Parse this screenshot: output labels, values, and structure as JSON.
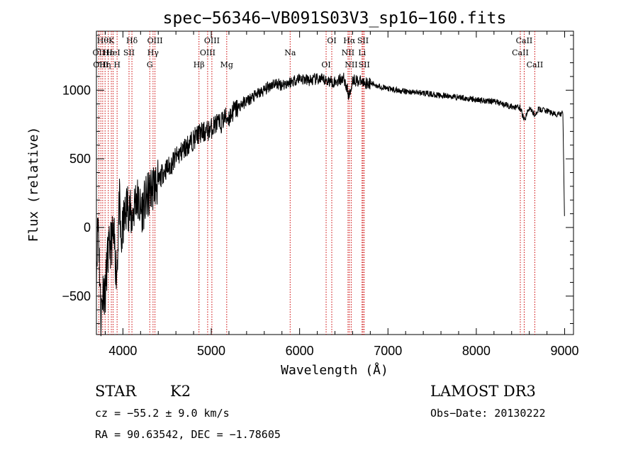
{
  "chart_data": {
    "type": "line",
    "title": "spec−56346−VB091S03V3_sp16−160.fits",
    "xlabel": "Wavelength (Å)",
    "ylabel": "Flux (relative)",
    "xlim": [
      3700,
      9100
    ],
    "ylim": [
      -780,
      1430
    ],
    "xticks": [
      4000,
      5000,
      6000,
      7000,
      8000,
      9000
    ],
    "xtick_labels": [
      "4000",
      "5000",
      "6000",
      "7000",
      "8000",
      "9000"
    ],
    "yticks": [
      -500,
      0,
      500,
      1000
    ],
    "ytick_labels": [
      "−500",
      "0",
      "500",
      "1000"
    ],
    "series": [
      {
        "name": "flux",
        "x": [
          3700,
          3720,
          3750,
          3780,
          3800,
          3820,
          3850,
          3880,
          3900,
          3930,
          3960,
          3980,
          4000,
          4050,
          4100,
          4150,
          4200,
          4250,
          4300,
          4350,
          4400,
          4450,
          4500,
          4550,
          4600,
          4650,
          4700,
          4750,
          4800,
          4850,
          4900,
          4950,
          5000,
          5050,
          5100,
          5150,
          5200,
          5250,
          5300,
          5350,
          5400,
          5500,
          5600,
          5700,
          5800,
          5900,
          6000,
          6100,
          6200,
          6300,
          6400,
          6500,
          6562,
          6600,
          6700,
          6800,
          6900,
          7000,
          7200,
          7400,
          7600,
          7800,
          8000,
          8200,
          8400,
          8500,
          8542,
          8600,
          8662,
          8700,
          8800,
          8900,
          8980,
          9000
        ],
        "values": [
          -300,
          100,
          -650,
          -420,
          -500,
          -250,
          -150,
          -80,
          -100,
          -350,
          200,
          -150,
          0,
          180,
          60,
          230,
          120,
          180,
          250,
          310,
          320,
          400,
          430,
          460,
          510,
          540,
          580,
          610,
          640,
          680,
          690,
          700,
          720,
          760,
          750,
          800,
          800,
          850,
          870,
          900,
          920,
          960,
          1000,
          1050,
          1040,
          1060,
          1090,
          1070,
          1080,
          1070,
          1060,
          1090,
          950,
          1080,
          1060,
          1050,
          1030,
          1010,
          990,
          980,
          960,
          950,
          930,
          920,
          880,
          870,
          780,
          870,
          820,
          860,
          850,
          820,
          830,
          0
        ]
      }
    ],
    "lines": [
      {
        "wl": 3727,
        "label": "OII",
        "row": 1
      },
      {
        "wl": 3750,
        "label": "OIII",
        "row": 2
      },
      {
        "wl": 3771,
        "label": "Hθ",
        "row": 0
      },
      {
        "wl": 3798,
        "label": "Hη",
        "row": 2
      },
      {
        "wl": 3835,
        "label": "Hε",
        "row": 1
      },
      {
        "wl": 3869,
        "label": "K",
        "row": 0
      },
      {
        "wl": 3889,
        "label": "HeI",
        "row": 1
      },
      {
        "wl": 3934,
        "label": "H",
        "row": 2
      },
      {
        "wl": 4069,
        "label": "SII",
        "row": 1
      },
      {
        "wl": 4102,
        "label": "Hδ",
        "row": 0
      },
      {
        "wl": 4304,
        "label": "G",
        "row": 2
      },
      {
        "wl": 4341,
        "label": "Hγ",
        "row": 1
      },
      {
        "wl": 4363,
        "label": "OIII",
        "row": 0
      },
      {
        "wl": 4861,
        "label": "Hβ",
        "row": 2
      },
      {
        "wl": 4959,
        "label": "OIII",
        "row": 1
      },
      {
        "wl": 5007,
        "label": "OIII",
        "row": 0
      },
      {
        "wl": 5175,
        "label": "Mg",
        "row": 2
      },
      {
        "wl": 5893,
        "label": "Na",
        "row": 1
      },
      {
        "wl": 6300,
        "label": "OI",
        "row": 2
      },
      {
        "wl": 6364,
        "label": "OI",
        "row": 0
      },
      {
        "wl": 6548,
        "label": "NII",
        "row": 1
      },
      {
        "wl": 6563,
        "label": "Hα",
        "row": 0
      },
      {
        "wl": 6584,
        "label": "NII",
        "row": 2
      },
      {
        "wl": 6707,
        "label": "Li",
        "row": 1
      },
      {
        "wl": 6717,
        "label": "SII",
        "row": 0
      },
      {
        "wl": 6731,
        "label": "SII",
        "row": 2
      },
      {
        "wl": 8498,
        "label": "CaII",
        "row": 1
      },
      {
        "wl": 8542,
        "label": "CaII",
        "row": 0
      },
      {
        "wl": 8662,
        "label": "CaII",
        "row": 2
      }
    ],
    "line_color": "#cc0000"
  },
  "info": {
    "obj_class": "STAR",
    "subclass": "K2",
    "survey": "LAMOST DR3",
    "cz": "cz = −55.2 ± 9.0 km/s",
    "obs_date": "Obs−Date: 20130222",
    "radec": "RA =  90.63542, DEC =  −1.78605"
  }
}
